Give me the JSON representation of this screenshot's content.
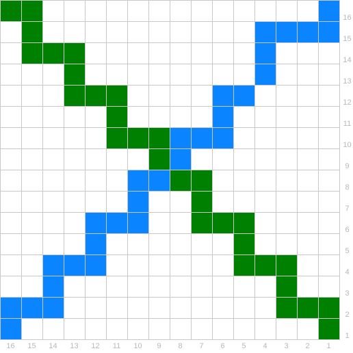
{
  "colors": {
    "blue": "#0a84ff",
    "green": "#008000",
    "empty": "#ffffff",
    "grid": "#c8c8c8",
    "label": "#b8b8b8"
  },
  "columns": [
    "16",
    "15",
    "14",
    "13",
    "12",
    "11",
    "10",
    "9",
    "8",
    "7",
    "6",
    "5",
    "4",
    "3",
    "2",
    "1"
  ],
  "rows": [
    "16",
    "15",
    "14",
    "13",
    "12",
    "11",
    "10",
    "9",
    "8",
    "7",
    "6",
    "5",
    "4",
    "3",
    "2",
    "1"
  ],
  "board": [
    "GG.............B",
    ".G..........BBBB",
    ".GGG........B...",
    "...G........B...",
    "...GGG....BB....",
    ".....G....B.....",
    ".....GGGBBB.....",
    ".......GB.......",
    "......BBGG......",
    "......B..G......",
    "....BBB..GGG....",
    "....B......G....",
    "..BBB......GGG..",
    "..B..........G..",
    "BBB..........GGG",
    "B..............G"
  ]
}
